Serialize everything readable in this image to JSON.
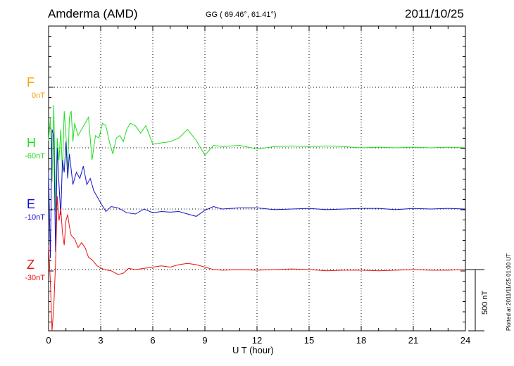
{
  "header": {
    "station": "Amderma (AMD)",
    "coords": "GG ( 69.46°,  61.41°)",
    "date": "2011/10/25"
  },
  "components": [
    {
      "letter": "F",
      "offset": "0nT",
      "color": "#f4a300"
    },
    {
      "letter": "H",
      "offset": "-60nT",
      "color": "#22dd22"
    },
    {
      "letter": "E",
      "offset": "-10nT",
      "color": "#1111cc"
    },
    {
      "letter": "Z",
      "offset": "-30nT",
      "color": "#ee1111"
    }
  ],
  "axis": {
    "xlabel": "U T (hour)",
    "ticks": [
      "0",
      "3",
      "6",
      "9",
      "12",
      "15",
      "18",
      "21",
      "24"
    ]
  },
  "scale_label": "500 nT",
  "plotted": "Plotted at 2011/11/25 01:00 UT",
  "chart_data": {
    "type": "line",
    "x_unit": "hour UT",
    "xlim": [
      0,
      24
    ],
    "series": [
      {
        "name": "H",
        "color": "#22dd22",
        "x": [
          0,
          0.1,
          0.2,
          0.3,
          0.4,
          0.5,
          0.6,
          0.7,
          0.8,
          0.9,
          1.0,
          1.1,
          1.2,
          1.3,
          1.4,
          1.5,
          1.7,
          1.9,
          2.1,
          2.3,
          2.5,
          2.7,
          2.9,
          3.1,
          3.3,
          3.5,
          3.7,
          3.9,
          4.1,
          4.3,
          4.5,
          4.7,
          5.0,
          5.3,
          5.6,
          6.0,
          6.5,
          7.0,
          7.5,
          8.0,
          8.5,
          9.0,
          9.5,
          10,
          11,
          12,
          13,
          14,
          15,
          16,
          17,
          18,
          19,
          20,
          21,
          22,
          23,
          24
        ],
        "y": [
          60,
          240,
          -280,
          350,
          -520,
          80,
          -100,
          150,
          -200,
          300,
          100,
          -180,
          250,
          300,
          50,
          200,
          100,
          150,
          200,
          250,
          -100,
          100,
          80,
          200,
          180,
          50,
          -50,
          80,
          100,
          50,
          150,
          200,
          180,
          120,
          180,
          30,
          40,
          50,
          80,
          150,
          60,
          -60,
          20,
          10,
          20,
          -10,
          10,
          15,
          10,
          15,
          10,
          0,
          5,
          0,
          5,
          0,
          5,
          0
        ]
      },
      {
        "name": "E",
        "color": "#1111cc",
        "x": [
          0,
          0.1,
          0.2,
          0.3,
          0.4,
          0.5,
          0.6,
          0.7,
          0.8,
          0.9,
          1.0,
          1.1,
          1.2,
          1.4,
          1.6,
          1.8,
          2.0,
          2.2,
          2.4,
          2.6,
          2.8,
          3.0,
          3.3,
          3.6,
          4.0,
          4.5,
          5.0,
          5.5,
          6.0,
          6.5,
          7.0,
          7.5,
          8.0,
          8.5,
          9.0,
          9.5,
          10,
          11,
          12,
          13,
          14,
          15,
          16,
          17,
          18,
          19,
          20,
          21,
          22,
          23,
          24
        ],
        "y": [
          300,
          -400,
          650,
          600,
          -350,
          500,
          200,
          -50,
          400,
          300,
          550,
          250,
          450,
          200,
          300,
          250,
          350,
          200,
          250,
          150,
          100,
          50,
          -20,
          20,
          10,
          -30,
          -40,
          0,
          -30,
          -20,
          -25,
          -20,
          -40,
          -60,
          -10,
          20,
          0,
          10,
          10,
          -5,
          0,
          5,
          -5,
          0,
          5,
          5,
          -5,
          5,
          0,
          5,
          0
        ]
      },
      {
        "name": "Z",
        "color": "#ee1111",
        "x": [
          0,
          0.1,
          0.2,
          0.3,
          0.4,
          0.5,
          0.6,
          0.7,
          0.8,
          0.9,
          1.0,
          1.1,
          1.2,
          1.3,
          1.5,
          1.7,
          1.9,
          2.1,
          2.3,
          2.5,
          2.8,
          3.2,
          3.6,
          4.0,
          4.3,
          4.6,
          5.0,
          5.5,
          6.0,
          6.5,
          7.0,
          7.5,
          8.0,
          8.5,
          9.0,
          9.5,
          10,
          11,
          12,
          13,
          14,
          15,
          16,
          17,
          18,
          19,
          20,
          21,
          22,
          23,
          24
        ],
        "y": [
          200,
          -100,
          -500,
          -300,
          50,
          600,
          400,
          500,
          300,
          200,
          400,
          450,
          350,
          280,
          250,
          180,
          220,
          180,
          100,
          80,
          30,
          0,
          -10,
          -40,
          -30,
          10,
          0,
          10,
          20,
          30,
          20,
          40,
          50,
          40,
          20,
          0,
          -5,
          0,
          -5,
          0,
          5,
          0,
          -10,
          -5,
          -5,
          -10,
          -5,
          0,
          -5,
          -5,
          0
        ]
      }
    ]
  }
}
